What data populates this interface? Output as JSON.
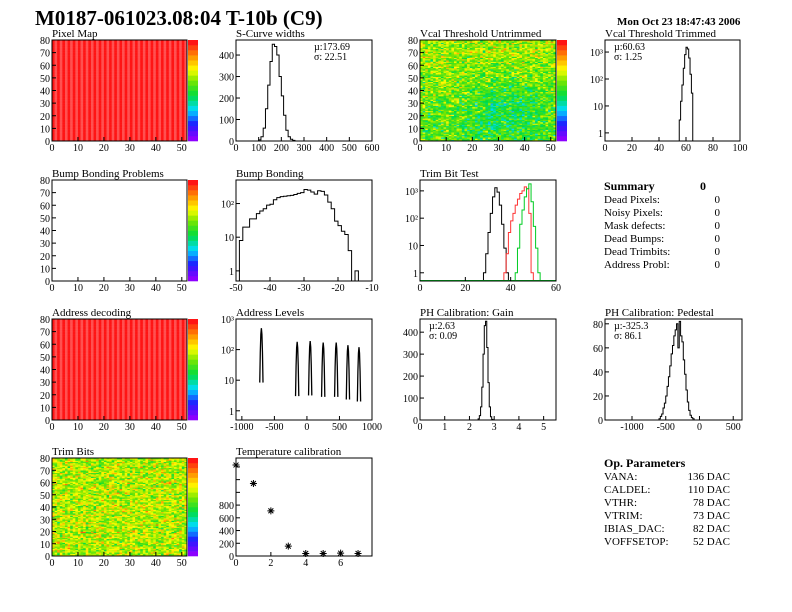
{
  "header": {
    "title": "M0187-061023.08:04 T-10b (C9)",
    "date": "Mon Oct 23 18:47:43 2006"
  },
  "summary": {
    "title": "Summary",
    "total": "0",
    "items": [
      {
        "label": "Dead Pixels:",
        "value": "0"
      },
      {
        "label": "Noisy Pixels:",
        "value": "0"
      },
      {
        "label": "Mask defects:",
        "value": "0"
      },
      {
        "label": "Dead Bumps:",
        "value": "0"
      },
      {
        "label": "Dead Trimbits:",
        "value": "0"
      },
      {
        "label": "Address Probl:",
        "value": "0"
      }
    ]
  },
  "op_parameters": {
    "title": "Op. Parameters",
    "items": [
      {
        "label": "VANA:",
        "value": "136 DAC"
      },
      {
        "label": "CALDEL:",
        "value": "110 DAC"
      },
      {
        "label": "VTHR:",
        "value": "78 DAC"
      },
      {
        "label": "VTRIM:",
        "value": "73 DAC"
      },
      {
        "label": "IBIAS_DAC:",
        "value": "82 DAC"
      },
      {
        "label": "VOFFSETOP:",
        "value": "52 DAC"
      }
    ]
  },
  "colors": {
    "line": "#000000",
    "red_series": "#ff3333",
    "green_series": "#00cc22",
    "heat_full": "#ff2a2a"
  },
  "chart_data": [
    {
      "id": "pixel_map",
      "type": "heatmap",
      "title": "Pixel Map",
      "xlim": [
        0,
        52
      ],
      "ylim": [
        0,
        80
      ],
      "xticks": [
        0,
        10,
        20,
        30,
        40,
        50
      ],
      "yticks": [
        0,
        10,
        20,
        30,
        40,
        50,
        60,
        70,
        80
      ],
      "fill": "uniform",
      "value": 10,
      "zrange": [
        0,
        10
      ]
    },
    {
      "id": "s_curve",
      "type": "bar",
      "title": "S-Curve widths",
      "xlim": [
        0,
        600
      ],
      "ylim": [
        0,
        470
      ],
      "log": false,
      "xticks": [
        0,
        100,
        200,
        300,
        400,
        500,
        600
      ],
      "yticks": [
        0,
        100,
        200,
        300,
        400
      ],
      "stats": [
        "µ:173.69",
        "σ: 22.51"
      ],
      "series": [
        {
          "color": "#000000",
          "start": 100,
          "width": 10,
          "values": [
            5,
            20,
            60,
            150,
            260,
            370,
            450,
            440,
            400,
            300,
            210,
            120,
            50,
            20,
            8,
            3
          ]
        }
      ]
    },
    {
      "id": "vcal_untrimmed",
      "type": "heatmap",
      "title": "Vcal Threshold Untrimmed",
      "xlim": [
        0,
        52
      ],
      "ylim": [
        0,
        80
      ],
      "xticks": [
        0,
        10,
        20,
        30,
        40,
        50
      ],
      "yticks": [
        0,
        10,
        20,
        30,
        40,
        50,
        60,
        70,
        80
      ],
      "fill": "noise",
      "zrange": [
        85,
        120
      ],
      "mean": 104
    },
    {
      "id": "vcal_trimmed",
      "type": "bar",
      "title": "Vcal Threshold Trimmed",
      "xlim": [
        0,
        100
      ],
      "ylim": [
        0.5,
        2800
      ],
      "log": true,
      "xticks": [
        0,
        20,
        40,
        60,
        80,
        100
      ],
      "yticks": [
        1,
        10,
        100,
        1000
      ],
      "ytick_labels": [
        "1",
        "10",
        "10²",
        "10³"
      ],
      "stats": [
        "µ:60.63",
        "σ: 1.25"
      ],
      "series": [
        {
          "color": "#000000",
          "start": 55,
          "width": 1,
          "values": [
            3,
            15,
            60,
            250,
            800,
            1500,
            1300,
            600,
            150,
            30
          ]
        }
      ]
    },
    {
      "id": "bump_problems",
      "type": "heatmap",
      "title": "Bump Bonding Problems",
      "xlim": [
        0,
        52
      ],
      "ylim": [
        0,
        80
      ],
      "xticks": [
        0,
        10,
        20,
        30,
        40,
        50
      ],
      "yticks": [
        0,
        10,
        20,
        30,
        40,
        50,
        60,
        70,
        80
      ],
      "fill": "empty",
      "zrange": [
        0,
        1
      ]
    },
    {
      "id": "bump_bonding",
      "type": "bar",
      "title": "Bump Bonding",
      "xlim": [
        -50,
        -10
      ],
      "ylim": [
        0.5,
        500
      ],
      "log": true,
      "xticks": [
        -50,
        -40,
        -30,
        -20,
        -10
      ],
      "yticks": [
        1,
        10,
        100
      ],
      "ytick_labels": [
        "1",
        "10",
        "10²"
      ],
      "series": [
        {
          "color": "#000000",
          "start": -49,
          "width": 1,
          "values": [
            8,
            20,
            20,
            35,
            35,
            50,
            60,
            70,
            90,
            95,
            130,
            150,
            160,
            165,
            170,
            175,
            185,
            200,
            210,
            260,
            250,
            220,
            190,
            240,
            230,
            180,
            110,
            70,
            30,
            22,
            15,
            12,
            4,
            0,
            1
          ]
        }
      ]
    },
    {
      "id": "trim_bit_test",
      "type": "bar",
      "title": "Trim Bit Test",
      "xlim": [
        0,
        60
      ],
      "ylim": [
        0.5,
        2500
      ],
      "log": true,
      "xticks": [
        0,
        20,
        40,
        60
      ],
      "yticks": [
        1,
        10,
        100,
        1000
      ],
      "ytick_labels": [
        "1",
        "10",
        "10²",
        "10³"
      ],
      "series": [
        {
          "color": "#000000",
          "start": 28,
          "width": 1,
          "values": [
            1,
            5,
            30,
            150,
            600,
            1300,
            900,
            300,
            60,
            8,
            1
          ]
        },
        {
          "color": "#ff3333",
          "start": 37,
          "width": 1,
          "values": [
            1,
            5,
            30,
            80,
            150,
            300,
            500,
            800,
            1000,
            1400,
            1200,
            150,
            1
          ]
        },
        {
          "color": "#00cc22",
          "start": 42,
          "width": 1,
          "values": [
            1,
            8,
            60,
            200,
            600,
            1200,
            1800,
            400,
            50,
            8,
            1
          ]
        }
      ]
    },
    {
      "id": "address_decoding",
      "type": "heatmap",
      "title": "Address decoding",
      "xlim": [
        0,
        52
      ],
      "ylim": [
        0,
        80
      ],
      "xticks": [
        0,
        10,
        20,
        30,
        40,
        50
      ],
      "yticks": [
        0,
        10,
        20,
        30,
        40,
        50,
        60,
        70,
        80
      ],
      "fill": "uniform",
      "value": 1,
      "zrange": [
        0,
        1
      ]
    },
    {
      "id": "address_levels",
      "type": "peaks",
      "title": "Address Levels",
      "xlim": [
        -1090,
        1000
      ],
      "ylim": [
        0.5,
        1000
      ],
      "log": true,
      "xticks": [
        -1000,
        -500,
        0,
        500,
        1000
      ],
      "yticks": [
        1,
        10,
        100,
        1000
      ],
      "ytick_labels": [
        "1",
        "10",
        "10²",
        "10³"
      ],
      "peaks": [
        {
          "x": -700,
          "y": 500
        },
        {
          "x": -150,
          "y": 180
        },
        {
          "x": 50,
          "y": 190
        },
        {
          "x": 250,
          "y": 170
        },
        {
          "x": 450,
          "y": 170
        },
        {
          "x": 630,
          "y": 140
        },
        {
          "x": 800,
          "y": 120
        }
      ]
    },
    {
      "id": "ph_gain",
      "type": "bar",
      "title": "PH Calibration: Gain",
      "xlim": [
        0,
        5.5
      ],
      "ylim": [
        0,
        460
      ],
      "log": false,
      "xticks": [
        0,
        1,
        2,
        3,
        4,
        5
      ],
      "yticks": [
        0,
        100,
        200,
        300,
        400
      ],
      "stats": [
        "µ:2.63",
        "σ: 0.09"
      ],
      "series": [
        {
          "color": "#000000",
          "start": 2.35,
          "width": 0.05,
          "values": [
            5,
            20,
            60,
            150,
            300,
            430,
            450,
            330,
            170,
            60,
            15,
            3
          ]
        }
      ]
    },
    {
      "id": "ph_pedestal",
      "type": "bar",
      "title": "PH Calibration: Pedestal",
      "xlim": [
        -1400,
        630
      ],
      "ylim": [
        0,
        84
      ],
      "log": false,
      "xticks": [
        -1000,
        -500,
        0,
        500
      ],
      "yticks": [
        0,
        20,
        40,
        60,
        80
      ],
      "stats": [
        "µ:-325.3",
        "σ: 86.1"
      ],
      "series": [
        {
          "color": "#000000",
          "start": -600,
          "width": 20,
          "values": [
            1,
            3,
            5,
            10,
            14,
            20,
            28,
            36,
            45,
            55,
            62,
            70,
            75,
            80,
            60,
            82,
            70,
            65,
            50,
            38,
            25,
            15,
            8,
            4,
            2,
            1
          ]
        }
      ]
    },
    {
      "id": "trim_bits",
      "type": "heatmap",
      "title": "Trim Bits",
      "xlim": [
        0,
        52
      ],
      "ylim": [
        0,
        80
      ],
      "xticks": [
        0,
        10,
        20,
        30,
        40,
        50
      ],
      "yticks": [
        0,
        10,
        20,
        30,
        40,
        50,
        60,
        70,
        80
      ],
      "fill": "noise",
      "zrange": [
        0,
        16
      ],
      "mean": 10.5
    },
    {
      "id": "temperature",
      "type": "scatter",
      "title": "Temperature calibration",
      "xlim": [
        0,
        7.8
      ],
      "ylim": [
        0,
        1540
      ],
      "xticks": [
        0,
        2,
        4,
        6
      ],
      "yticks": [
        0,
        200,
        400,
        600,
        800
      ],
      "minor_yticks": [
        1000,
        1200,
        1400
      ],
      "points": [
        [
          0,
          1430
        ],
        [
          1,
          1140
        ],
        [
          2,
          710
        ],
        [
          3,
          155
        ],
        [
          4,
          40
        ],
        [
          5,
          40
        ],
        [
          6,
          45
        ],
        [
          7,
          40
        ]
      ]
    }
  ]
}
